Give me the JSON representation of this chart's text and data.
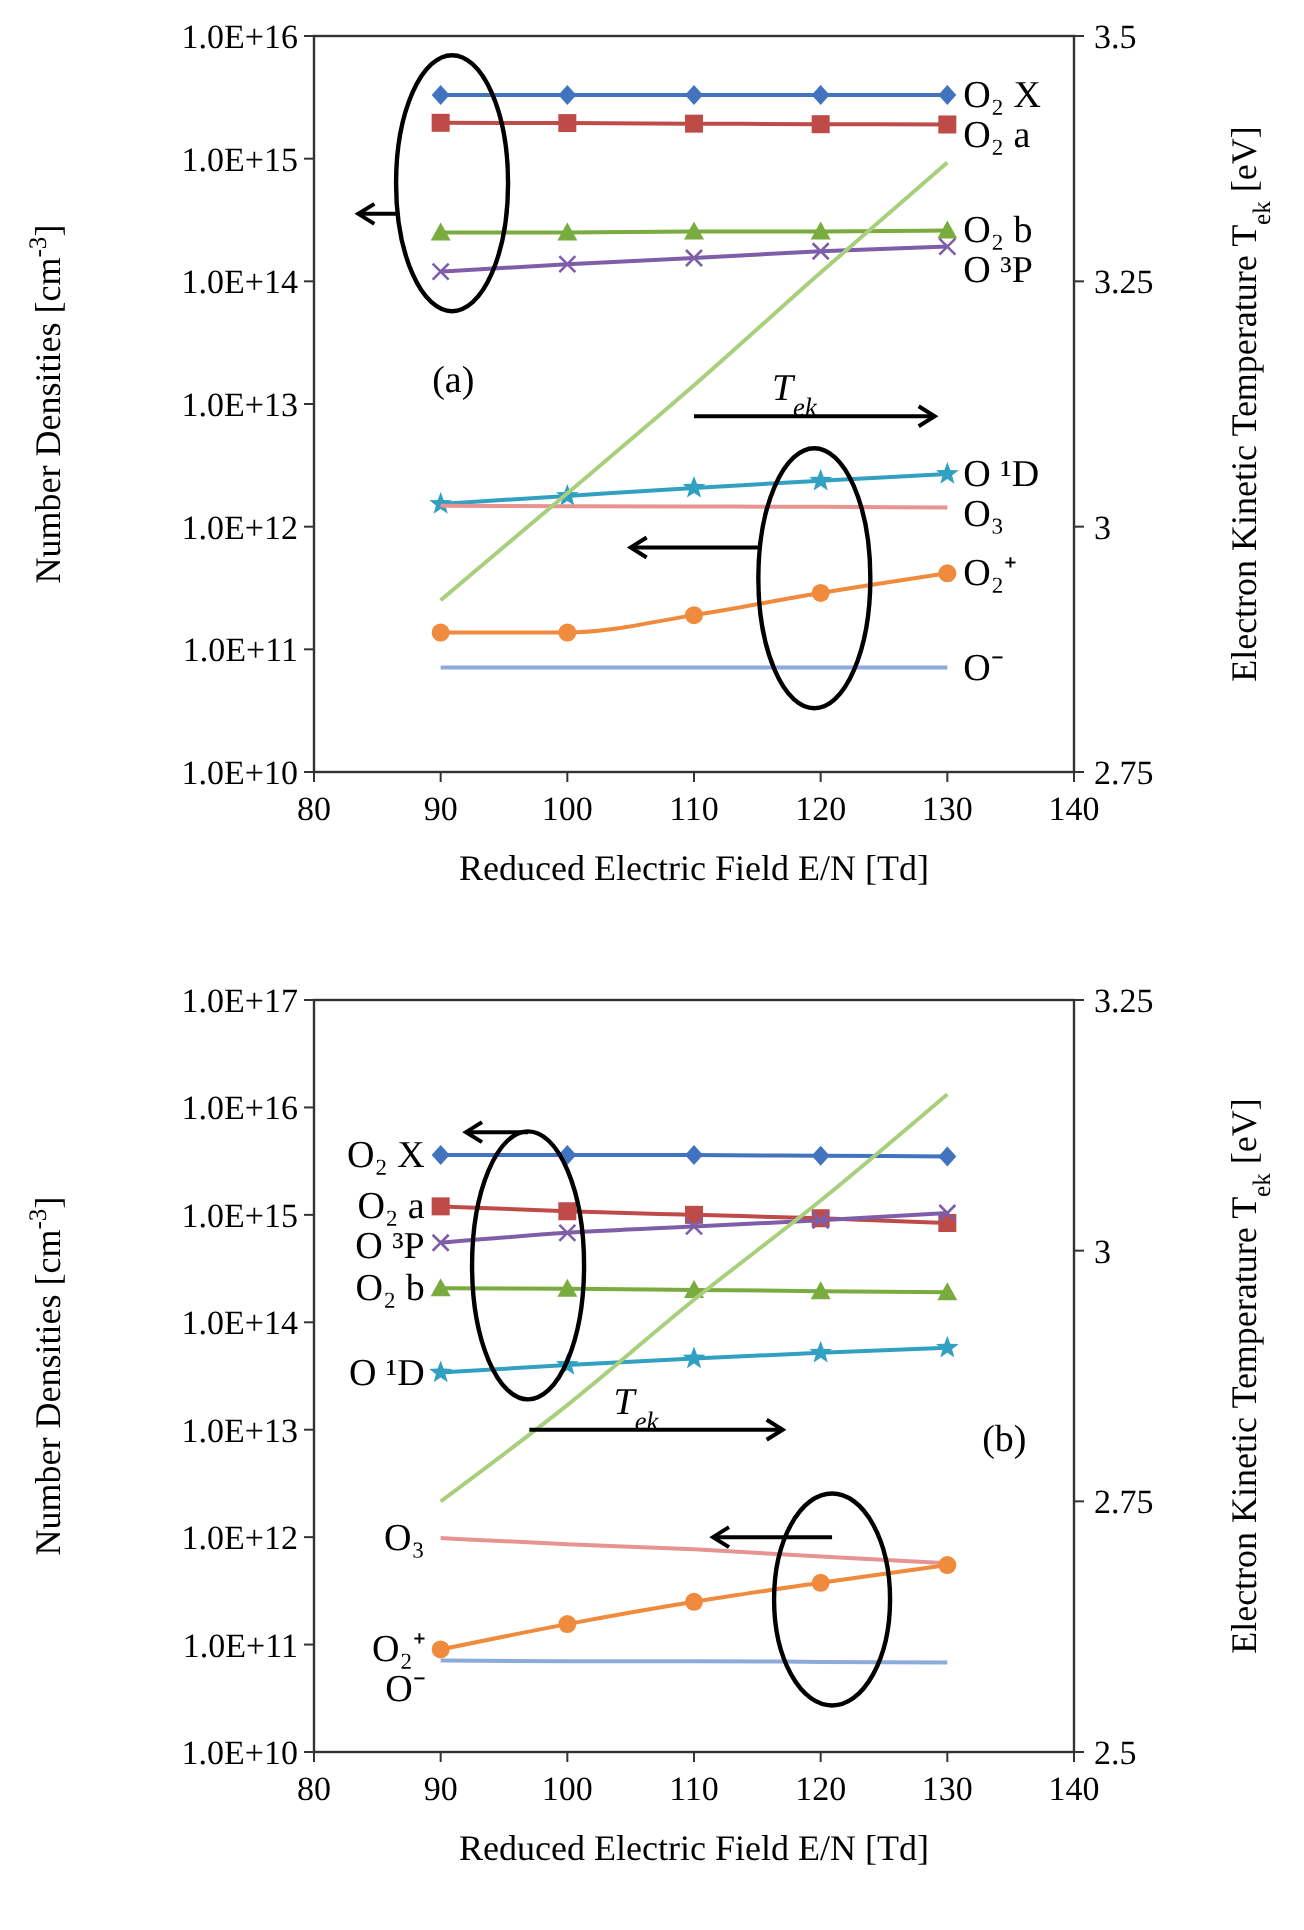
{
  "chart_data": [
    {
      "type": "line",
      "xlabel": "Reduced Electric Field E/N [Td]",
      "ylabel": "Number Densities [cm$^{-3}$]",
      "y2label": "Electron Kinetic Temperature T$_{ek}$ [eV]",
      "x": [
        90,
        100,
        110,
        120,
        130
      ],
      "log": "y",
      "xlim": [
        80,
        140
      ],
      "xticks": [
        80,
        90,
        100,
        110,
        120,
        130,
        140
      ],
      "ylim": [
        10000000000.0,
        1e+16
      ],
      "yticks": [
        {
          "value": 10000000000.0,
          "label": "1.0E+10"
        },
        {
          "value": 100000000000.0,
          "label": "1.0E+11"
        },
        {
          "value": 1000000000000.0,
          "label": "1.0E+12"
        },
        {
          "value": 10000000000000.0,
          "label": "1.0E+13"
        },
        {
          "value": 100000000000000.0,
          "label": "1.0E+14"
        },
        {
          "value": 1000000000000000.0,
          "label": "1.0E+15"
        },
        {
          "value": 1e+16,
          "label": "1.0E+16"
        }
      ],
      "y2lim": [
        2.75,
        3.5
      ],
      "y2ticks": [
        2.75,
        3,
        3.25,
        3.5
      ],
      "grid": false,
      "annotations": [
        "(a)"
      ],
      "series": [
        {
          "name": "O₂ X",
          "color": "#4273be",
          "marker": "diamond",
          "values": [
            3300000000000000.0,
            3300000000000000.0,
            3300000000000000.0,
            3300000000000000.0,
            3300000000000000.0
          ]
        },
        {
          "name": "O₂ a",
          "color": "#be4b48",
          "marker": "square",
          "values": [
            1960000000000000.0,
            1950000000000000.0,
            1930000000000000.0,
            1910000000000000.0,
            1900000000000000.0
          ]
        },
        {
          "name": "O₂ b",
          "color": "#7aab3e",
          "marker": "triangle",
          "values": [
            250000000000000.0,
            250000000000000.0,
            255000000000000.0,
            255000000000000.0,
            260000000000000.0
          ]
        },
        {
          "name": "O ³P",
          "color": "#7e5ea8",
          "marker": "cross",
          "values": [
            120000000000000.0,
            138000000000000.0,
            155000000000000.0,
            176000000000000.0,
            192000000000000.0
          ]
        },
        {
          "name": "O ¹D",
          "color": "#32a0c0",
          "marker": "star",
          "values": [
            1530000000000.0,
            1780000000000.0,
            2070000000000.0,
            2370000000000.0,
            2690000000000.0
          ]
        },
        {
          "name": "O₃",
          "color": "#e69392",
          "marker": "none",
          "values": [
            1480000000000.0,
            1470000000000.0,
            1460000000000.0,
            1450000000000.0,
            1430000000000.0
          ]
        },
        {
          "name": "O₂⁺",
          "color": "#f08a3c",
          "marker": "circle",
          "values": [
            137000000000.0,
            137000000000.0,
            190000000000.0,
            288000000000.0,
            417000000000.0
          ]
        },
        {
          "name": "O⁻",
          "color": "#8eaadc",
          "marker": "none",
          "values": [
            71000000000.0,
            71000000000.0,
            71000000000.0,
            71000000000.0,
            71000000000.0
          ]
        },
        {
          "name": "T$_{ek}$",
          "color": "#a8d07c",
          "marker": "none",
          "axis": "y2",
          "values": [
            2.925,
            3.034,
            3.144,
            3.259,
            3.371
          ]
        }
      ]
    },
    {
      "type": "line",
      "xlabel": "Reduced Electric Field E/N [Td]",
      "ylabel": "Number Densities [cm$^{-3}$]",
      "y2label": "Electron Kinetic Temperature T$_{ek}$ [eV]",
      "x": [
        90,
        100,
        110,
        120,
        130
      ],
      "log": "y",
      "xlim": [
        80,
        140
      ],
      "xticks": [
        80,
        90,
        100,
        110,
        120,
        130,
        140
      ],
      "ylim": [
        10000000000.0,
        1e+17
      ],
      "yticks": [
        {
          "value": 10000000000.0,
          "label": "1.0E+10"
        },
        {
          "value": 100000000000.0,
          "label": "1.0E+11"
        },
        {
          "value": 1000000000000.0,
          "label": "1.0E+12"
        },
        {
          "value": 10000000000000.0,
          "label": "1.0E+13"
        },
        {
          "value": 100000000000000.0,
          "label": "1.0E+14"
        },
        {
          "value": 1000000000000000.0,
          "label": "1.0E+15"
        },
        {
          "value": 1e+16,
          "label": "1.0E+16"
        },
        {
          "value": 1e+17,
          "label": "1.0E+17"
        }
      ],
      "y2lim": [
        2.5,
        3.25
      ],
      "y2ticks": [
        2.5,
        2.75,
        3,
        3.25
      ],
      "grid": false,
      "annotations": [
        "(b)"
      ],
      "series": [
        {
          "name": "O₂ X",
          "color": "#4273be",
          "marker": "diamond",
          "values": [
            3600000000000000.0,
            3600000000000000.0,
            3600000000000000.0,
            3550000000000000.0,
            3500000000000000.0
          ]
        },
        {
          "name": "O₂ a",
          "color": "#be4b48",
          "marker": "square",
          "values": [
            1200000000000000.0,
            1080000000000000.0,
            1000000000000000.0,
            930000000000000.0,
            840000000000000.0
          ]
        },
        {
          "name": "O ³P",
          "color": "#7e5ea8",
          "marker": "cross",
          "values": [
            550000000000000.0,
            680000000000000.0,
            780000000000000.0,
            890000000000000.0,
            1040000000000000.0
          ]
        },
        {
          "name": "O₂ b",
          "color": "#7aab3e",
          "marker": "triangle",
          "values": [
            207000000000000.0,
            205000000000000.0,
            200000000000000.0,
            195000000000000.0,
            190000000000000.0
          ]
        },
        {
          "name": "O ¹D",
          "color": "#32a0c0",
          "marker": "star",
          "values": [
            34000000000000.0,
            40000000000000.0,
            46000000000000.0,
            52000000000000.0,
            58000000000000.0
          ]
        },
        {
          "name": "O₃",
          "color": "#e69392",
          "marker": "none",
          "values": [
            980000000000.0,
            860000000000.0,
            770000000000.0,
            660000000000.0,
            570000000000.0
          ]
        },
        {
          "name": "O₂⁺",
          "color": "#f08a3c",
          "marker": "circle",
          "values": [
            90000000000.0,
            155000000000.0,
            250000000000.0,
            376000000000.0,
            550000000000.0
          ]
        },
        {
          "name": "O⁻",
          "color": "#8eaadc",
          "marker": "none",
          "values": [
            71000000000.0,
            70000000000.0,
            70000000000.0,
            69000000000.0,
            68000000000.0
          ]
        },
        {
          "name": "T$_{ek}$",
          "color": "#a8d07c",
          "marker": "none",
          "axis": "y2",
          "values": [
            2.75,
            2.846,
            2.951,
            3.05,
            3.156
          ]
        }
      ]
    }
  ]
}
